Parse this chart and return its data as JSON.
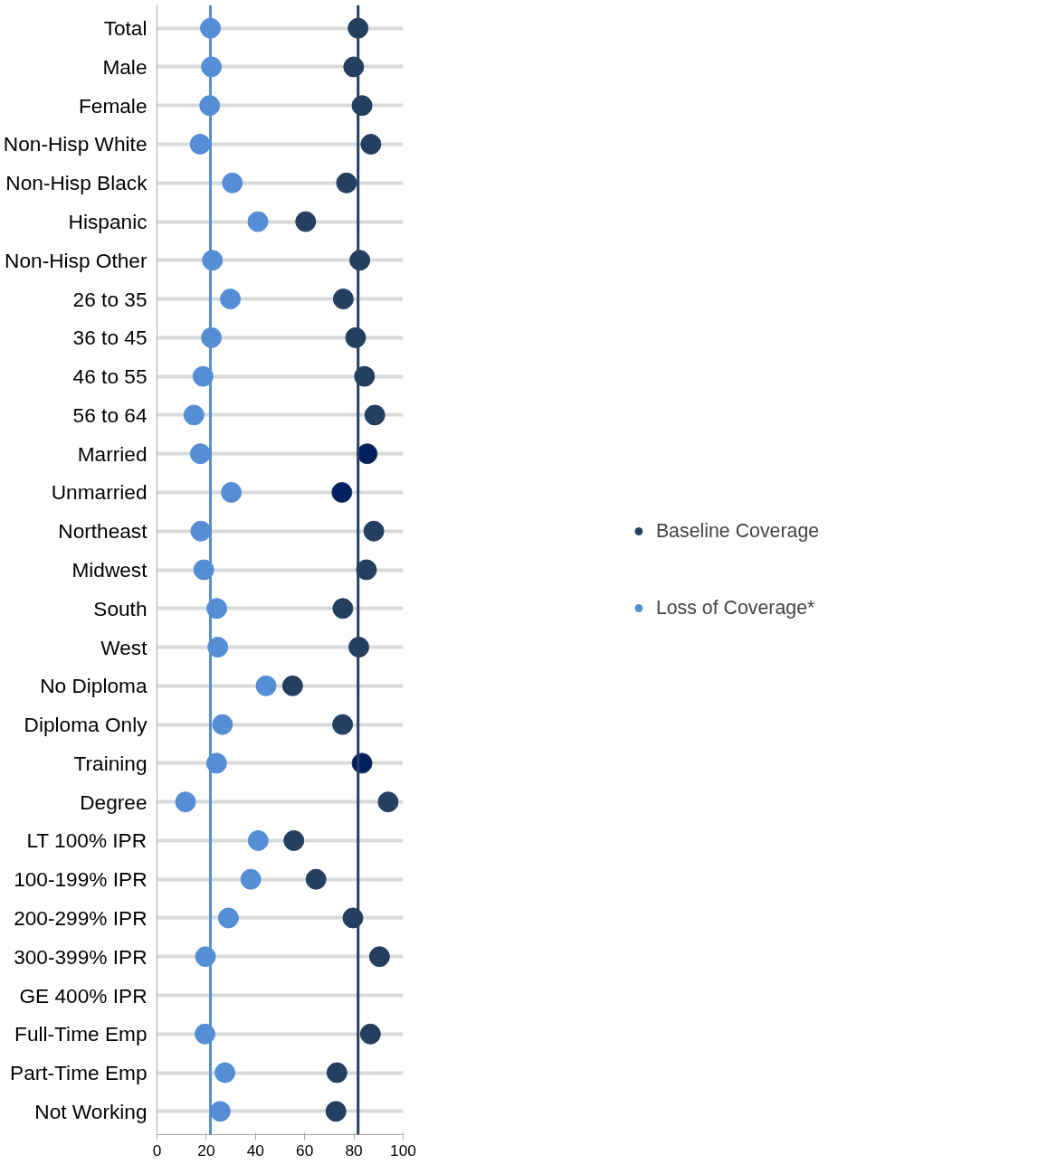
{
  "chart_data": {
    "type": "scatter",
    "orientation": "horizontal",
    "categories": [
      "Total",
      "Male",
      "Female",
      "Non-Hisp White",
      "Non-Hisp Black",
      "Hispanic",
      "Non-Hisp Other",
      "26 to 35",
      "36 to 45",
      "46 to 55",
      "56 to 64",
      "Married",
      "Unmarried",
      "Northeast",
      "Midwest",
      "South",
      "West",
      "No Diploma",
      "Diploma Only",
      "Training",
      "Degree",
      "LT 100% IPR",
      "100-199% IPR",
      "200-299% IPR",
      "300-399% IPR",
      "GE 400% IPR",
      "Full-Time Emp",
      "Part-Time Emp",
      "Not Working"
    ],
    "series": [
      {
        "name": "Baseline Coverage",
        "color": "#243f60",
        "colors": [
          "#243f60",
          "#243f60",
          "#243f60",
          "#243f60",
          "#243f60",
          "#243f60",
          "#243f60",
          "#243f60",
          "#243f60",
          "#243f60",
          "#243f60",
          "#002060",
          "#002060",
          "#243f60",
          "#243f60",
          "#243f60",
          "#243f60",
          "#243f60",
          "#243f60",
          "#002060",
          "#243f60",
          "#243f60",
          "#243f60",
          "#243f60",
          "#243f60",
          "#243f60",
          "#243f60",
          "#243f60",
          "#243f60"
        ],
        "values": [
          81.7,
          79.9,
          83.3,
          86.9,
          77.0,
          60.4,
          82.4,
          75.7,
          80.7,
          84.3,
          88.5,
          85.4,
          75.1,
          88.1,
          85.1,
          75.5,
          82.0,
          55.1,
          75.4,
          83.3,
          93.9,
          55.6,
          64.6,
          79.6,
          90.4,
          null,
          86.7,
          73.1,
          72.7
        ]
      },
      {
        "name": "Loss of Coverage*",
        "color": "#558ed5",
        "values": [
          21.7,
          22.1,
          21.4,
          17.5,
          30.6,
          41.0,
          22.5,
          29.8,
          22.1,
          18.7,
          15.0,
          17.6,
          30.2,
          17.8,
          19.0,
          24.3,
          24.7,
          44.3,
          26.6,
          24.2,
          11.6,
          41.1,
          38.1,
          29.0,
          19.7,
          null,
          19.5,
          27.6,
          25.7
        ]
      }
    ],
    "xlim": [
      0,
      100
    ],
    "xticks": [
      0,
      20,
      40,
      60,
      80,
      100
    ],
    "ref_lines": [
      {
        "axis": "x",
        "value": 21.7,
        "color": "#558ed5"
      },
      {
        "axis": "x",
        "value": 81.7,
        "color": "#243f60"
      }
    ],
    "grid": "y",
    "legend": "right",
    "marker": "circle"
  }
}
